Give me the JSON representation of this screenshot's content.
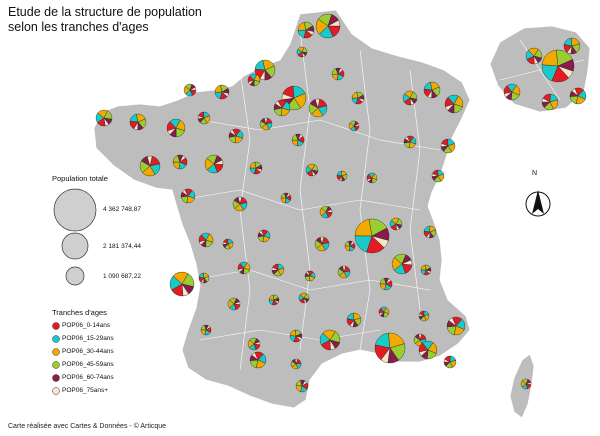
{
  "title_line1": "Etude de la structure de population",
  "title_line2": "selon les tranches d'ages",
  "legend_size": {
    "heading": "Population totale",
    "values": [
      "4 362 748,87",
      "2 181 374,44",
      "1 090 687,22"
    ]
  },
  "legend_ages": {
    "heading": "Tranches d'ages",
    "items": [
      {
        "label": "POP06_0-14ans",
        "color": "#e31b23"
      },
      {
        "label": "POP06_15-29ans",
        "color": "#1bc9c9"
      },
      {
        "label": "POP06_30-44ans",
        "color": "#f2a900"
      },
      {
        "label": "POP06_45-59ans",
        "color": "#9acd32"
      },
      {
        "label": "POP06_60-74ans",
        "color": "#8b1a4f"
      },
      {
        "label": "POP06_75ans+",
        "color": "#f5e6c8"
      }
    ]
  },
  "north_label": "N",
  "credit": "Carte réalisée avec Cartes & Données - © Articque",
  "colors": {
    "land": "#bdbdbd",
    "border": "#ffffff"
  }
}
